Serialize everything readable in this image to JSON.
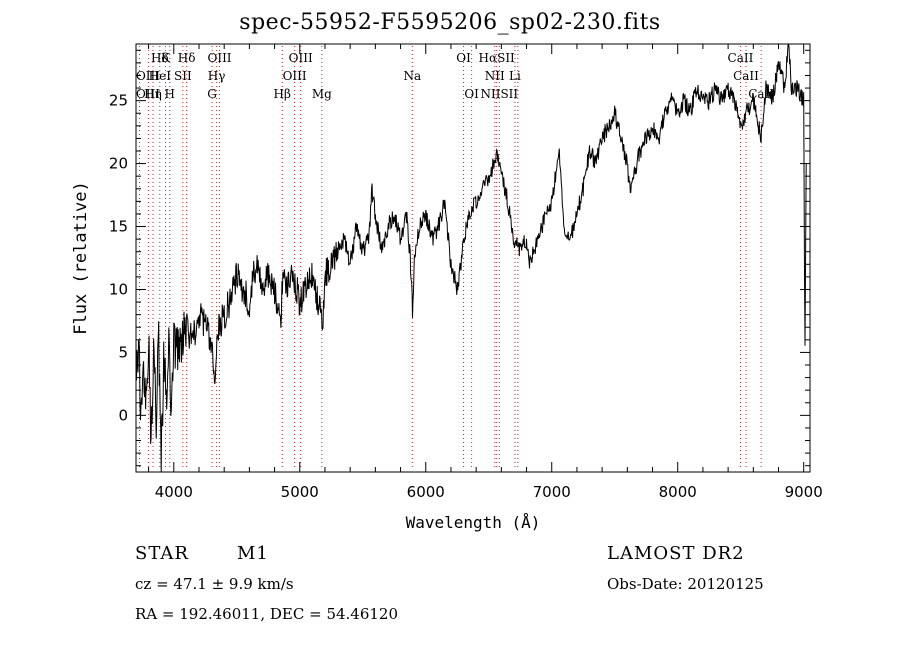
{
  "chart_data": {
    "type": "line",
    "title": "spec-55952-F5595206_sp02-230.fits",
    "xlabel": "Wavelength (Å)",
    "ylabel": "Flux (relative)",
    "xlim": [
      3700,
      9050
    ],
    "ylim": [
      -4.5,
      29.5
    ],
    "xticks": [
      4000,
      5000,
      6000,
      7000,
      8000,
      9000
    ],
    "yticks": [
      0,
      5,
      10,
      15,
      20,
      25
    ],
    "series": [
      {
        "name": "flux",
        "x": [
          3700,
          3720,
          3740,
          3760,
          3780,
          3800,
          3820,
          3840,
          3860,
          3880,
          3900,
          3920,
          3940,
          3960,
          3980,
          4000,
          4050,
          4100,
          4150,
          4200,
          4250,
          4300,
          4330,
          4350,
          4400,
          4450,
          4500,
          4550,
          4600,
          4650,
          4700,
          4750,
          4800,
          4850,
          4870,
          4900,
          4950,
          5000,
          5050,
          5100,
          5150,
          5180,
          5200,
          5250,
          5300,
          5350,
          5400,
          5450,
          5500,
          5550,
          5570,
          5600,
          5650,
          5700,
          5750,
          5800,
          5850,
          5880,
          5895,
          5910,
          5950,
          6000,
          6050,
          6100,
          6150,
          6200,
          6250,
          6280,
          6300,
          6350,
          6400,
          6450,
          6500,
          6540,
          6563,
          6600,
          6650,
          6700,
          6750,
          6800,
          6820,
          6850,
          6900,
          6950,
          7000,
          7030,
          7060,
          7100,
          7150,
          7200,
          7250,
          7300,
          7350,
          7400,
          7450,
          7500,
          7550,
          7600,
          7620,
          7650,
          7700,
          7750,
          7800,
          7850,
          7900,
          7950,
          8000,
          8050,
          8100,
          8150,
          8200,
          8250,
          8300,
          8350,
          8400,
          8450,
          8498,
          8542,
          8600,
          8662,
          8700,
          8750,
          8800,
          8850,
          8880,
          8900,
          8950,
          9000,
          9010,
          9020
        ],
        "y": [
          2,
          6,
          -1,
          4,
          1,
          7,
          -2,
          5,
          0,
          6,
          -3,
          4,
          2,
          5,
          1,
          6,
          5,
          7,
          6,
          8,
          7,
          6,
          3,
          7,
          8,
          9,
          11,
          10,
          9,
          12,
          10,
          11,
          10,
          8,
          12,
          10,
          11,
          9,
          10,
          11,
          9,
          7,
          11,
          12,
          13,
          14,
          12,
          15,
          13,
          14,
          18,
          16,
          13,
          15,
          16,
          14,
          16,
          12,
          8,
          13,
          15,
          16,
          14,
          15,
          17,
          12,
          10,
          12,
          14,
          16,
          17,
          18,
          19,
          20,
          21,
          19,
          17,
          14,
          13,
          14,
          12,
          13,
          14,
          16,
          17,
          19,
          21,
          15,
          14,
          16,
          18,
          21,
          20,
          22,
          23,
          24,
          22,
          20,
          18,
          19,
          21,
          22,
          23,
          22,
          24,
          25,
          24,
          25,
          24,
          26,
          25,
          25,
          26,
          25,
          26,
          25,
          23,
          24,
          25,
          22,
          26,
          25,
          28,
          26,
          30,
          26,
          26,
          25,
          5,
          20
        ]
      }
    ],
    "line_labels": [
      {
        "text": "Hδ",
        "wl": 3889,
        "row": 1
      },
      {
        "text": "K",
        "wl": 3934,
        "row": 1
      },
      {
        "text": "Hδ",
        "wl": 4102,
        "row": 1
      },
      {
        "text": "OIII",
        "wl": 4363,
        "row": 1
      },
      {
        "text": "OIII",
        "wl": 5007,
        "row": 1
      },
      {
        "text": "OI",
        "wl": 6300,
        "row": 1
      },
      {
        "text": "HαSII",
        "wl": 6563,
        "row": 1
      },
      {
        "text": "CaII",
        "wl": 8498,
        "row": 1
      },
      {
        "text": "OIII",
        "wl": 3728,
        "row": 2
      },
      {
        "text": "HeI",
        "wl": 3889,
        "row": 2
      },
      {
        "text": "SII",
        "wl": 4072,
        "row": 2
      },
      {
        "text": "Hγ",
        "wl": 4340,
        "row": 2
      },
      {
        "text": "OIII",
        "wl": 4959,
        "row": 2
      },
      {
        "text": "Na",
        "wl": 5893,
        "row": 2
      },
      {
        "text": "NII",
        "wl": 6548,
        "row": 2
      },
      {
        "text": "Li",
        "wl": 6708,
        "row": 2
      },
      {
        "text": "CaII",
        "wl": 8542,
        "row": 2
      },
      {
        "text": "OIII",
        "wl": 3728,
        "row": 3
      },
      {
        "text": "Hη",
        "wl": 3835,
        "row": 3
      },
      {
        "text": "H",
        "wl": 3968,
        "row": 3
      },
      {
        "text": "G",
        "wl": 4304,
        "row": 3
      },
      {
        "text": "Hβ",
        "wl": 4861,
        "row": 3
      },
      {
        "text": "Mg",
        "wl": 5175,
        "row": 3
      },
      {
        "text": "OI",
        "wl": 6364,
        "row": 3
      },
      {
        "text": "NIISII",
        "wl": 6584,
        "row": 3
      },
      {
        "text": "CaII",
        "wl": 8662,
        "row": 3
      }
    ],
    "line_markers": [
      3728,
      3798,
      3835,
      3889,
      3934,
      3968,
      4072,
      4102,
      4304,
      4340,
      4363,
      4861,
      4959,
      5007,
      5175,
      5893,
      6300,
      6364,
      6548,
      6563,
      6584,
      6708,
      6731,
      8498,
      8542,
      8662
    ]
  },
  "info": {
    "object_class": "STAR",
    "subclass": "M1",
    "survey": "LAMOST DR2",
    "redshift_text": "cz = 47.1 ± 9.9 km/s",
    "obs_date": "Obs-Date: 20120125",
    "coords": "RA = 192.46011, DEC =  54.46120"
  }
}
